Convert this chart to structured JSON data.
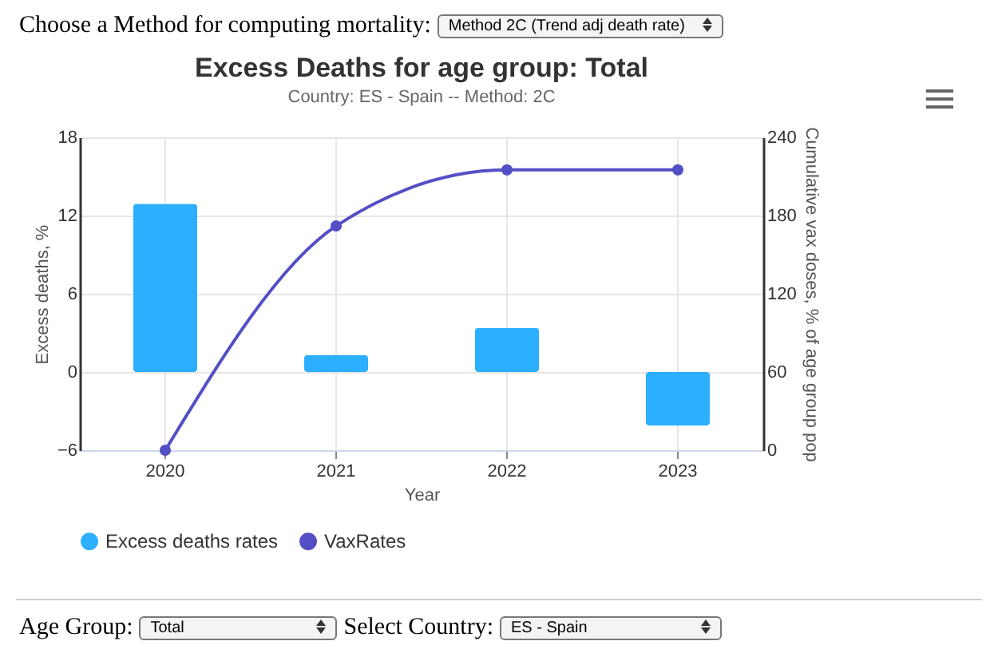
{
  "chart_data": {
    "type": "bar",
    "title": "Excess Deaths for age group: Total",
    "subtitle": "Country: ES - Spain -- Method: 2C",
    "xlabel": "Year",
    "ylabel": "Excess deaths, %",
    "y2label": "Cumulative vax doses, % of age group pop",
    "categories": [
      "2020",
      "2021",
      "2022",
      "2023"
    ],
    "series": [
      {
        "name": "Excess deaths rates",
        "color": "#2caffe",
        "values": [
          12.9,
          1.3,
          3.4,
          -4.1
        ]
      },
      {
        "name": "VaxRates",
        "type": "line",
        "axis": "y2",
        "color": "#544fc5",
        "values": [
          0,
          172,
          215,
          215
        ]
      }
    ],
    "ylim": [
      -6,
      18
    ],
    "yticks": [
      -6,
      0,
      6,
      12,
      18
    ],
    "y2lim": [
      0,
      240
    ],
    "y2ticks": [
      0,
      60,
      120,
      180,
      240
    ],
    "grid": true,
    "legend": "bottom",
    "marker": "circle",
    "annotations": [
      "Choose a Method for computing mortality:",
      "Method 2C (Trend adj death rate)",
      "Age Group:",
      "Total",
      "Select Country:",
      "ES - Spain"
    ]
  }
}
